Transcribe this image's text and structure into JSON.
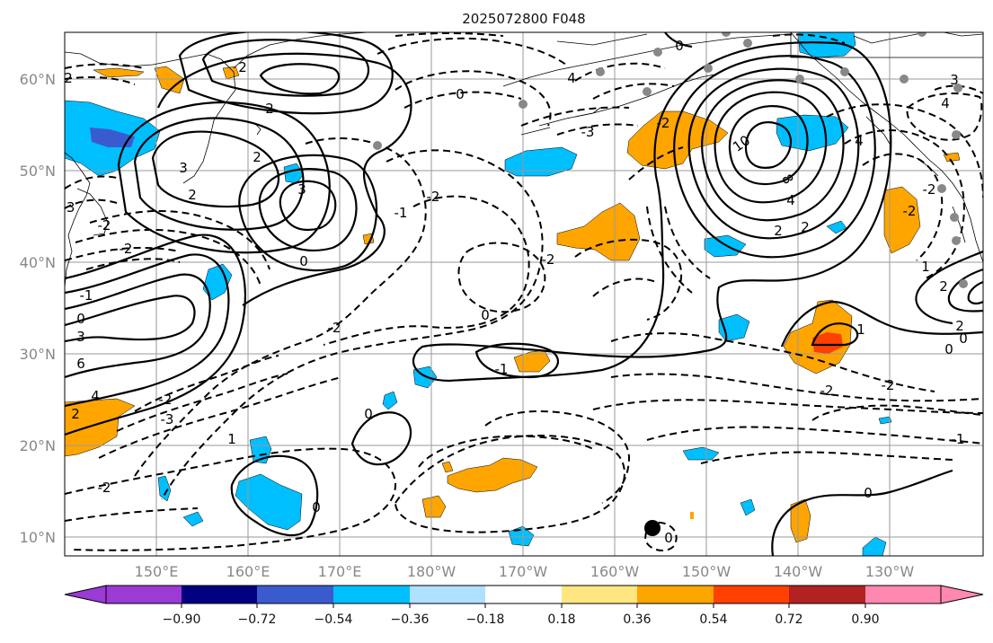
{
  "title": "2025072800 F048",
  "axes": {
    "x_ticks": [
      "150°E",
      "160°E",
      "170°E",
      "180°W",
      "170°W",
      "160°W",
      "150°W",
      "140°W",
      "130°W"
    ],
    "y_ticks": [
      "60°N",
      "50°N",
      "40°N",
      "30°N",
      "20°N",
      "10°N"
    ],
    "lon_range": "140°E – 120°W",
    "lat_range": "8°N – 65°N",
    "grid": true
  },
  "colorbar": {
    "ticks": [
      "−0.90",
      "−0.72",
      "−0.54",
      "−0.36",
      "−0.18",
      "0.18",
      "0.36",
      "0.54",
      "0.72",
      "0.90"
    ],
    "colors": [
      "#9b3ad4",
      "#000080",
      "#3a5bd0",
      "#00bfff",
      "#b0e0ff",
      "#ffffff",
      "#ffe680",
      "#ffa500",
      "#ff4000",
      "#b22222",
      "#ff88b0"
    ],
    "extend": "both"
  },
  "contour_labels": [
    "0",
    "-1",
    "-2",
    "-3",
    "1",
    "2",
    "3",
    "4",
    "6",
    "8",
    "10"
  ],
  "colors": {
    "ocean": "#ffffff",
    "contour": "#000000",
    "grid": "#9a9a9a",
    "station": "#888888"
  }
}
